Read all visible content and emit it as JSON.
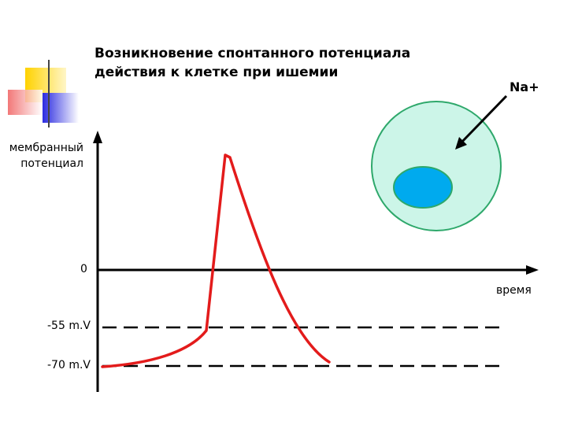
{
  "title": {
    "line1": "Возникновение спонтанного потенциала",
    "line2": "действия к клетке при ишемии"
  },
  "ion_label": "Na+",
  "axis": {
    "y_label_line1": "мембранный",
    "y_label_line2": "потенциал",
    "x_label": "время",
    "zero_label": "0",
    "threshold_label": "-55 m.V",
    "rest_label": "-70 m.V"
  },
  "colors": {
    "curve": "#e31b1b",
    "cell_fill": "#ccf5e8",
    "cell_stroke": "#2ea86b",
    "nucleus_fill": "#00aaee",
    "deco_yellow": "#ffd200",
    "deco_blue": "#2b2be0",
    "deco_red": "#f06060"
  }
}
